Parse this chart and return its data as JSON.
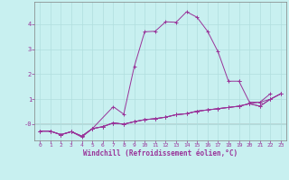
{
  "xlabel": "Windchill (Refroidissement éolien,°C)",
  "bg_color": "#c8f0f0",
  "grid_color": "#b0dede",
  "line_color": "#993399",
  "label_color": "#993399",
  "x_ticks": [
    0,
    1,
    2,
    3,
    4,
    5,
    6,
    7,
    8,
    9,
    10,
    11,
    12,
    13,
    14,
    15,
    16,
    17,
    18,
    19,
    20,
    21,
    22,
    23
  ],
  "y_ticks": [
    0,
    1,
    2,
    3,
    4
  ],
  "y_tick_labels": [
    "-0",
    "1",
    "2",
    "3",
    "4"
  ],
  "ylim": [
    -0.65,
    4.9
  ],
  "xlim": [
    -0.5,
    23.5
  ],
  "series": [
    {
      "x": [
        1,
        2,
        3,
        4,
        5,
        7,
        8,
        9,
        10,
        11,
        12,
        13,
        14,
        15,
        16,
        17,
        18,
        19
      ],
      "y": [
        -0.28,
        -0.42,
        -0.3,
        -0.52,
        -0.18,
        0.7,
        0.4,
        2.3,
        3.7,
        3.72,
        4.1,
        4.08,
        4.5,
        4.28,
        3.72,
        2.9,
        1.72,
        1.72
      ]
    },
    {
      "x": [
        19,
        20,
        21,
        22
      ],
      "y": [
        1.72,
        0.88,
        0.88,
        1.22
      ]
    },
    {
      "x": [
        0,
        1,
        2,
        3,
        4,
        5,
        6,
        7,
        8,
        9,
        10,
        11,
        12,
        13,
        14,
        15,
        16,
        17,
        18,
        19,
        20,
        21,
        22,
        23
      ],
      "y": [
        -0.28,
        -0.28,
        -0.42,
        -0.3,
        -0.48,
        -0.18,
        -0.1,
        0.05,
        0.0,
        0.1,
        0.18,
        0.22,
        0.28,
        0.38,
        0.42,
        0.52,
        0.57,
        0.62,
        0.67,
        0.72,
        0.82,
        0.88,
        1.0,
        1.22
      ]
    },
    {
      "x": [
        0,
        1,
        2,
        3,
        4,
        5,
        6,
        7,
        8,
        9,
        10,
        11,
        12,
        13,
        14,
        15,
        16,
        17,
        18,
        19,
        20,
        21,
        22,
        23
      ],
      "y": [
        -0.28,
        -0.28,
        -0.42,
        -0.3,
        -0.48,
        -0.18,
        -0.1,
        0.05,
        0.0,
        0.1,
        0.18,
        0.22,
        0.28,
        0.38,
        0.42,
        0.52,
        0.57,
        0.62,
        0.67,
        0.72,
        0.82,
        0.72,
        1.0,
        1.22
      ]
    },
    {
      "x": [
        0,
        1,
        2,
        3,
        4,
        5,
        6,
        7,
        8,
        9,
        10,
        11,
        12,
        13,
        14,
        15,
        16,
        17,
        18,
        19,
        20,
        21,
        22,
        23
      ],
      "y": [
        -0.28,
        -0.28,
        -0.42,
        -0.3,
        -0.48,
        -0.18,
        -0.1,
        0.05,
        0.0,
        0.1,
        0.18,
        0.22,
        0.28,
        0.38,
        0.42,
        0.52,
        0.57,
        0.62,
        0.67,
        0.72,
        0.82,
        0.72,
        1.0,
        1.22
      ]
    }
  ]
}
